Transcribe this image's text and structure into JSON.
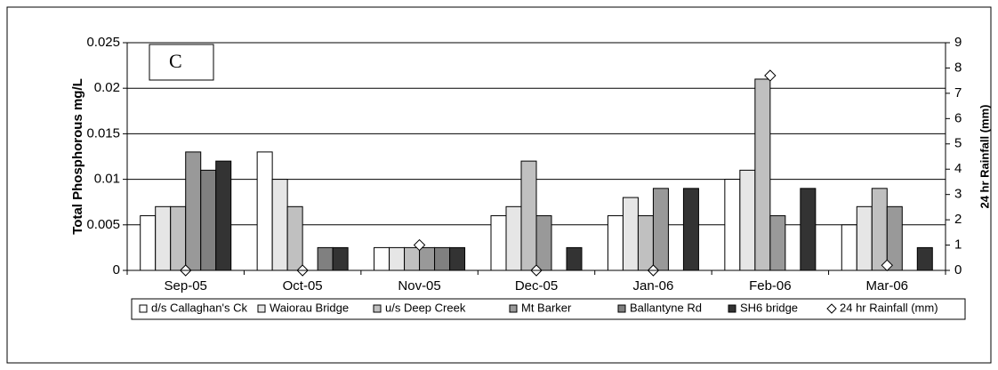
{
  "chart_data": {
    "type": "bar",
    "annotation": "C",
    "y_label": "Total Phosphorous mg/L",
    "y2_label": "24 hr Rainfall (mm)",
    "categories": [
      "Sep-05",
      "Oct-05",
      "Nov-05",
      "Dec-05",
      "Jan-06",
      "Feb-06",
      "Mar-06"
    ],
    "series": [
      {
        "name": "d/s Callaghan's Ck",
        "color": "#ffffff",
        "values": [
          0.006,
          0.013,
          0.0025,
          0.006,
          0.006,
          0.01,
          0.005
        ]
      },
      {
        "name": "Waiorau Bridge",
        "color": "#e6e6e6",
        "values": [
          0.007,
          0.01,
          0.0025,
          0.007,
          0.008,
          0.011,
          0.007
        ]
      },
      {
        "name": "u/s Deep Creek",
        "color": "#c0c0c0",
        "values": [
          0.007,
          0.007,
          0.0025,
          0.012,
          0.006,
          0.021,
          0.009
        ]
      },
      {
        "name": "Mt Barker",
        "color": "#999999",
        "values": [
          0.013,
          null,
          0.0025,
          0.006,
          0.009,
          0.006,
          0.007
        ]
      },
      {
        "name": "Ballantyne Rd",
        "color": "#808080",
        "values": [
          0.011,
          0.0025,
          0.0025,
          null,
          null,
          null,
          null
        ]
      },
      {
        "name": "SH6 bridge",
        "color": "#333333",
        "values": [
          0.012,
          0.0025,
          0.0025,
          0.0025,
          0.009,
          0.009,
          0.0025
        ]
      },
      {
        "name": "24 hr Rainfall (mm)",
        "type": "scatter",
        "axis": "y2",
        "color": "#ffffff",
        "values": [
          0,
          0,
          1,
          0,
          0,
          7.7,
          0.2
        ]
      }
    ],
    "ylim": [
      0,
      0.025
    ],
    "yticks": [
      0,
      0.005,
      0.01,
      0.015,
      0.02,
      0.025
    ],
    "y2lim": [
      0,
      9
    ],
    "y2ticks": [
      0,
      1,
      2,
      3,
      4,
      5,
      6,
      7,
      8,
      9
    ],
    "grid": true,
    "legend": "bottom"
  }
}
